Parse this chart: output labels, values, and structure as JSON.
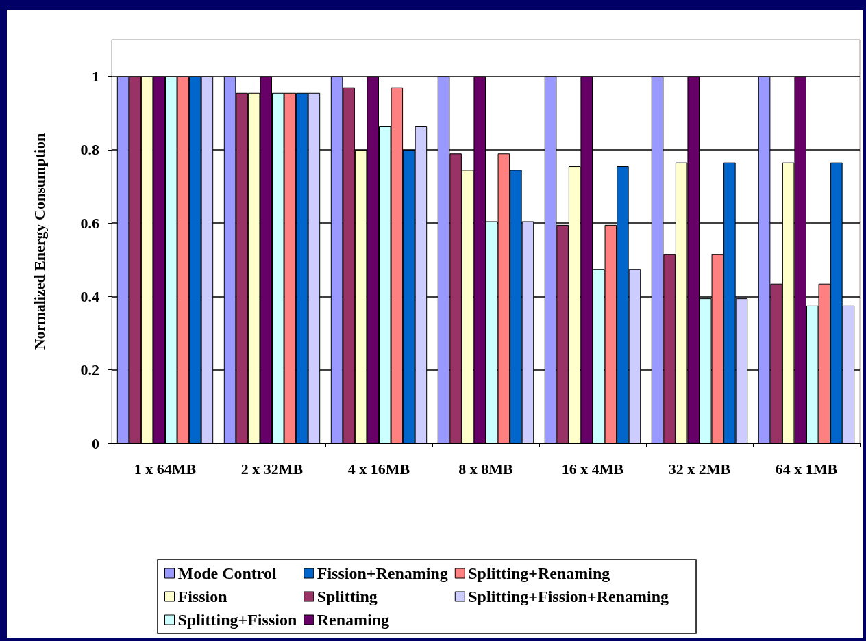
{
  "chart_data": {
    "type": "bar",
    "ylabel": "Normalized Energy Consumption",
    "categories": [
      "1 x 64MB",
      "2 x 32MB",
      "4 x 16MB",
      "8 x 8MB",
      "16 x 4MB",
      "32 x 2MB",
      "64 x 1MB"
    ],
    "series": [
      {
        "name": "Mode Control",
        "color": "#9999ff",
        "values": [
          1,
          1,
          1,
          1,
          1,
          1,
          1
        ]
      },
      {
        "name": "Splitting",
        "color": "#993366",
        "values": [
          1,
          0.955,
          0.97,
          0.79,
          0.595,
          0.515,
          0.435
        ]
      },
      {
        "name": "Fission",
        "color": "#ffffcc",
        "values": [
          1,
          0.955,
          0.8,
          0.745,
          0.755,
          0.765,
          0.765
        ]
      },
      {
        "name": "Renaming",
        "color": "#660066",
        "values": [
          1,
          1,
          1,
          1,
          1,
          1,
          1
        ]
      },
      {
        "name": "Splitting+Fission",
        "color": "#ccffff",
        "values": [
          1,
          0.955,
          0.865,
          0.605,
          0.475,
          0.395,
          0.375
        ]
      },
      {
        "name": "Splitting+Renaming",
        "color": "#ff8080",
        "values": [
          1,
          0.955,
          0.97,
          0.79,
          0.595,
          0.515,
          0.435
        ]
      },
      {
        "name": "Fission+Renaming",
        "color": "#0066cc",
        "values": [
          1,
          0.955,
          0.8,
          0.745,
          0.755,
          0.765,
          0.765
        ]
      },
      {
        "name": "Splitting+Fission+Renaming",
        "color": "#ccccff",
        "values": [
          1,
          0.955,
          0.865,
          0.605,
          0.475,
          0.395,
          0.375
        ]
      }
    ],
    "ylim": [
      0,
      1.1
    ],
    "yticks": [
      0,
      0.2,
      0.4,
      0.6,
      0.8,
      1
    ],
    "grid": "y",
    "legend": "bottom"
  }
}
